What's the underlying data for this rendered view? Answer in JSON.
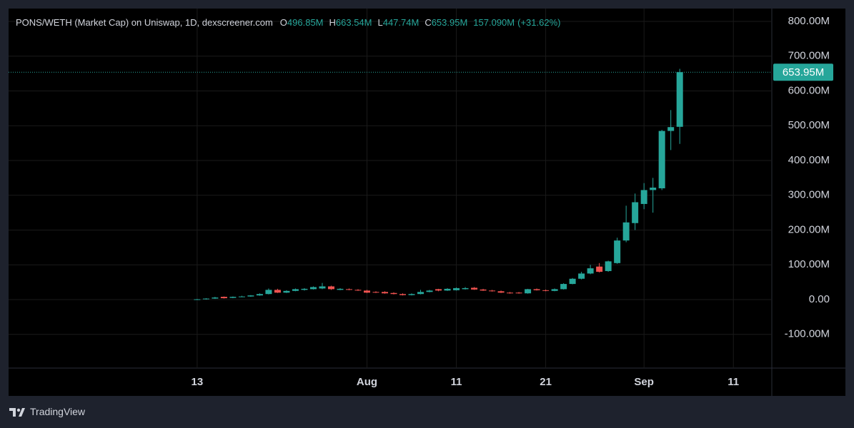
{
  "chart_data": {
    "type": "candlestick",
    "title": "PONS/WETH (Market Cap) on Uniswap, 1D, dexscreener.com",
    "legend": {
      "keys": [
        "O",
        "H",
        "L",
        "C"
      ],
      "values": [
        496.85,
        663.54,
        447.74,
        653.95
      ],
      "value_labels": [
        "496.85M",
        "663.54M",
        "447.74M",
        "653.95M"
      ],
      "change": 157.09,
      "change_label": "157.090M",
      "change_pct": 31.62,
      "change_pct_label": "(+31.62%)"
    },
    "open": [
      0,
      1,
      3,
      8,
      5,
      8,
      9,
      12,
      16,
      28,
      20,
      25,
      28,
      30,
      32,
      38,
      28,
      30,
      28,
      26,
      22,
      22,
      19,
      16,
      13,
      16,
      22,
      30,
      26,
      27,
      30,
      34,
      29,
      26,
      24,
      20,
      20,
      18,
      30,
      27,
      25,
      30,
      45,
      60,
      75,
      95,
      82,
      105,
      170,
      220,
      275,
      315,
      320,
      485,
      496.85
    ],
    "high": [
      2,
      4,
      8,
      9,
      9,
      11,
      13,
      18,
      32,
      31,
      27,
      32,
      33,
      38,
      48,
      40,
      33,
      32,
      30,
      28,
      24,
      24,
      21,
      18,
      18,
      28,
      28,
      31,
      33,
      35,
      36,
      36,
      31,
      28,
      26,
      22,
      22,
      31,
      32,
      29,
      32,
      47,
      62,
      80,
      100,
      105,
      112,
      178,
      270,
      305,
      335,
      350,
      488,
      545,
      663.54
    ],
    "low": [
      0,
      0,
      2,
      3,
      4,
      7,
      8,
      11,
      15,
      19,
      19,
      24,
      26,
      29,
      30,
      28,
      27,
      27,
      25,
      19,
      19,
      17,
      15,
      12,
      12,
      15,
      21,
      24,
      25,
      26,
      29,
      28,
      25,
      23,
      19,
      17,
      17,
      17,
      26,
      24,
      24,
      29,
      44,
      58,
      73,
      78,
      80,
      103,
      165,
      200,
      260,
      250,
      315,
      430,
      447.74
    ],
    "close": [
      1,
      3,
      6,
      4,
      8,
      9,
      12,
      16,
      28,
      20,
      25,
      30,
      31,
      36,
      38,
      30,
      31,
      28,
      26,
      20,
      20,
      18,
      16,
      13,
      16,
      22,
      26,
      26,
      31,
      33,
      33,
      29,
      26,
      24,
      20,
      18,
      18,
      30,
      27,
      25,
      30,
      45,
      60,
      75,
      90,
      80,
      110,
      170,
      222,
      280,
      315,
      322,
      485,
      496,
      653.95
    ],
    "up_color": "#26a69a",
    "down_color": "#ef5350",
    "xlim": [
      -21.1,
      64.3
    ],
    "xticks": [
      {
        "value": 0,
        "label": "13"
      },
      {
        "value": 19,
        "label": "Aug"
      },
      {
        "value": 29,
        "label": "11"
      },
      {
        "value": 39,
        "label": "21"
      },
      {
        "value": 50,
        "label": "Sep"
      },
      {
        "value": 60,
        "label": "11"
      }
    ],
    "ylim": [
      -196.9,
      836.9
    ],
    "yticks": [
      {
        "value": -100,
        "label": "-100.00M"
      },
      {
        "value": 0,
        "label": "0.00"
      },
      {
        "value": 100,
        "label": "100.00M"
      },
      {
        "value": 200,
        "label": "200.00M"
      },
      {
        "value": 300,
        "label": "300.00M"
      },
      {
        "value": 400,
        "label": "400.00M"
      },
      {
        "value": 500,
        "label": "500.00M"
      },
      {
        "value": 600,
        "label": "600.00M"
      },
      {
        "value": 700,
        "label": "700.00M"
      },
      {
        "value": 800,
        "label": "800.00M"
      }
    ],
    "grid": true,
    "footer": "TradingView"
  }
}
